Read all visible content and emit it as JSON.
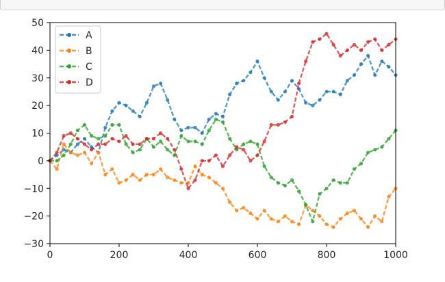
{
  "chart_data": {
    "type": "line",
    "title": "",
    "xlabel": "",
    "ylabel": "",
    "xlim": [
      0,
      1000
    ],
    "ylim": [
      -30,
      50
    ],
    "xticks": [
      0,
      200,
      400,
      600,
      800,
      1000
    ],
    "yticks": [
      -30,
      -20,
      -10,
      0,
      10,
      20,
      30,
      40,
      50
    ],
    "grid": false,
    "legend_position": "top-left",
    "line_style": "dashed with point markers",
    "x": [
      0,
      20,
      40,
      60,
      80,
      100,
      120,
      140,
      160,
      180,
      200,
      220,
      240,
      260,
      280,
      300,
      320,
      340,
      360,
      380,
      400,
      420,
      440,
      460,
      480,
      500,
      520,
      540,
      560,
      580,
      600,
      620,
      640,
      660,
      680,
      700,
      720,
      740,
      760,
      780,
      800,
      820,
      840,
      860,
      880,
      900,
      920,
      940,
      960,
      980,
      1000
    ],
    "series": [
      {
        "name": "A",
        "color": "#1f77b4",
        "values": [
          0,
          2,
          4,
          3,
          6,
          8,
          5,
          3,
          12,
          18,
          21,
          20,
          18,
          16,
          21,
          27,
          28,
          22,
          15,
          11,
          12,
          12,
          10,
          15,
          17,
          16,
          24,
          28,
          29,
          32,
          36,
          30,
          25,
          22,
          25,
          29,
          26,
          21,
          20,
          22,
          25,
          25,
          24,
          29,
          31,
          35,
          38,
          31,
          36,
          34,
          31
        ]
      },
      {
        "name": "B",
        "color": "#ff7f0e",
        "values": [
          0,
          -3,
          6,
          3,
          2,
          3,
          -1,
          3,
          -5,
          -3,
          -8,
          -7,
          -5,
          -7,
          -5,
          -5,
          -3,
          -6,
          -7,
          -8,
          -8,
          -2,
          -5,
          -6,
          -8,
          -10,
          -15,
          -18,
          -17,
          -19,
          -21,
          -18,
          -21,
          -22,
          -20,
          -22,
          -23,
          -16,
          -18,
          -20,
          -23,
          -24,
          -21,
          -19,
          -18,
          -21,
          -24,
          -20,
          -22,
          -13,
          -10
        ]
      },
      {
        "name": "C",
        "color": "#2ca02c",
        "values": [
          0,
          0,
          2,
          6,
          11,
          13,
          9,
          8,
          9,
          13,
          13,
          6,
          3,
          4,
          8,
          5,
          7,
          4,
          2,
          9,
          7,
          7,
          6,
          11,
          15,
          14,
          8,
          4,
          6,
          7,
          6,
          -2,
          -6,
          -8,
          -9,
          -7,
          -11,
          -16,
          -22,
          -12,
          -10,
          -7,
          -8,
          -8,
          -3,
          -1,
          3,
          4,
          5,
          8,
          11
        ]
      },
      {
        "name": "D",
        "color": "#d62728",
        "values": [
          0,
          3,
          9,
          10,
          8,
          6,
          4,
          6,
          6,
          8,
          7,
          9,
          6,
          6,
          8,
          8,
          10,
          8,
          4,
          -3,
          -10,
          -7,
          0,
          0,
          2,
          -2,
          2,
          5,
          4,
          0,
          2,
          7,
          13,
          13,
          14,
          16,
          28,
          36,
          43,
          44,
          46,
          42,
          38,
          40,
          42,
          40,
          43,
          44,
          40,
          42,
          44
        ]
      }
    ]
  }
}
